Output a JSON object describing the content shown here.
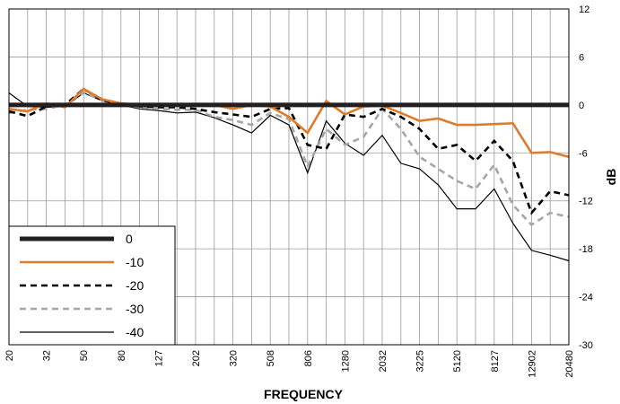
{
  "chart_data": {
    "type": "line",
    "xlabel": "FREQUENCY",
    "ylabel": "dB",
    "ylim": [
      -30,
      12
    ],
    "yticks": [
      "12",
      "6",
      "0",
      "-6",
      "-12",
      "-18",
      "-24",
      "-30"
    ],
    "categories": [
      "20",
      "25",
      "32",
      "40",
      "50",
      "63",
      "80",
      "100",
      "127",
      "160",
      "202",
      "254",
      "320",
      "403",
      "508",
      "640",
      "806",
      "1016",
      "1280",
      "1612",
      "2032",
      "2560",
      "3225",
      "4064",
      "5120",
      "6451",
      "8127",
      "10240",
      "12902",
      "16256",
      "20480"
    ],
    "tick_labels_shown": [
      "20",
      "32",
      "50",
      "80",
      "127",
      "202",
      "320",
      "508",
      "806",
      "1280",
      "2032",
      "3225",
      "5120",
      "8127",
      "12902",
      "20480"
    ],
    "grid": true,
    "legend_position": "bottom-left",
    "series": [
      {
        "name": "0",
        "color": "#231f20",
        "dash": "solid",
        "width": "thick",
        "values": [
          0,
          0,
          0,
          0,
          0,
          0,
          0,
          0,
          0,
          0,
          0,
          0,
          0,
          0,
          0,
          0,
          0,
          0,
          0,
          0,
          0,
          0,
          0,
          0,
          0,
          0,
          0,
          0,
          0,
          0,
          0
        ]
      },
      {
        "name": "-10",
        "color": "#e07b2a",
        "dash": "solid",
        "width": "medium",
        "values": [
          -0.5,
          -0.8,
          0.2,
          -0.3,
          2.0,
          0.7,
          0.2,
          0,
          0,
          0,
          0.1,
          0,
          -0.5,
          0,
          -0.2,
          -1.5,
          -3.5,
          0.5,
          -1.2,
          -0.2,
          -0.1,
          -1.0,
          -2.0,
          -1.7,
          -2.5,
          -2.5,
          -2.4,
          -2.3,
          -6.0,
          -5.9,
          -6.5
        ]
      },
      {
        "name": "-20",
        "color": "#000000",
        "dash": "dashed",
        "width": "medium",
        "values": [
          -0.8,
          -1.4,
          -0.2,
          0,
          2.0,
          0.6,
          0.1,
          -0.2,
          -0.3,
          -0.3,
          -0.5,
          -0.9,
          -1.2,
          -1.5,
          -0.5,
          -0.4,
          -5.0,
          -5.5,
          -1.2,
          -1.5,
          -0.5,
          -1.5,
          -3.0,
          -5.5,
          -5.0,
          -7.0,
          -4.5,
          -7.0,
          -13.5,
          -10.8,
          -11.3
        ]
      },
      {
        "name": "-30",
        "color": "#a6a6a6",
        "dash": "dashed",
        "width": "medium",
        "values": [
          -1.0,
          -0.6,
          -0.5,
          0,
          1.6,
          0.6,
          0.1,
          -0.3,
          -0.5,
          -0.6,
          -0.6,
          -1.5,
          -1.9,
          -2.5,
          -1.0,
          -1.8,
          -7.7,
          -3.0,
          -5.0,
          -4.0,
          -0.5,
          -3.0,
          -6.5,
          -8.0,
          -9.5,
          -10.5,
          -7.5,
          -12.5,
          -15.0,
          -13.5,
          -14.0
        ]
      },
      {
        "name": "-40",
        "color": "#000000",
        "dash": "solid",
        "width": "thin",
        "values": [
          1.5,
          -0.2,
          -0.3,
          -0.2,
          1.5,
          0.5,
          0,
          -0.5,
          -0.7,
          -1.0,
          -0.9,
          -1.6,
          -2.5,
          -3.5,
          -1.3,
          -2.5,
          -8.5,
          -2.0,
          -4.8,
          -6.3,
          -3.8,
          -7.3,
          -8.0,
          -10.0,
          -13.0,
          -13.0,
          -10.5,
          -14.8,
          -18.2,
          -18.8,
          -19.5
        ]
      }
    ]
  }
}
